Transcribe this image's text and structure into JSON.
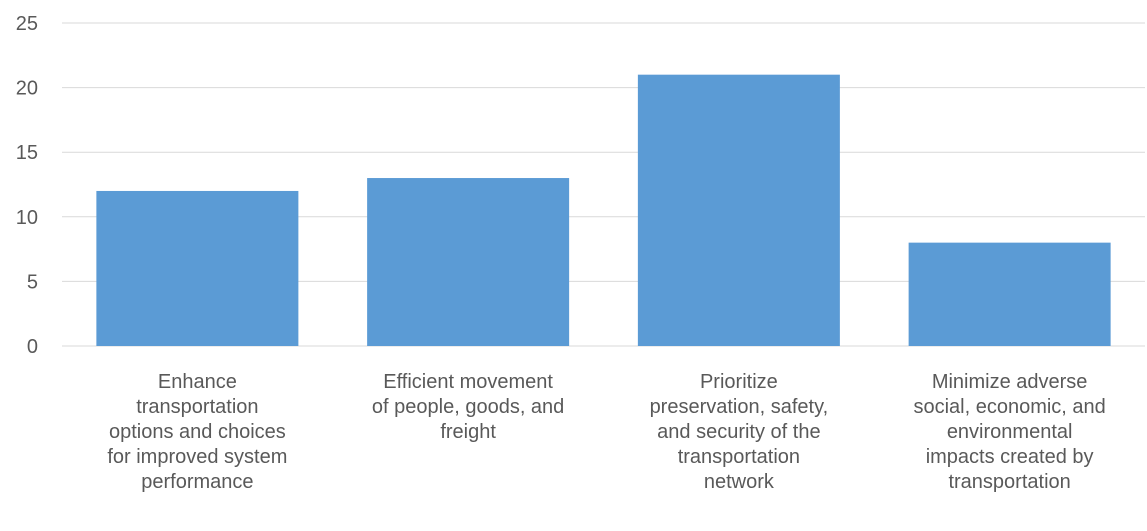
{
  "chart_data": {
    "type": "bar",
    "categories": [
      [
        "Enhance",
        "transportation",
        "options and choices",
        "for improved system",
        "performance"
      ],
      [
        "Efficient movement",
        "of people, goods, and",
        "freight"
      ],
      [
        "Prioritize",
        "preservation, safety,",
        "and security of the",
        "transportation",
        "network"
      ],
      [
        "Minimize adverse",
        "social, economic, and",
        "environmental",
        "impacts created by",
        "transportation"
      ]
    ],
    "values": [
      12,
      13,
      21,
      8
    ],
    "ylim": [
      0,
      25
    ],
    "yticks": [
      0,
      5,
      10,
      15,
      20,
      25
    ],
    "title": "",
    "xlabel": "",
    "ylabel": "",
    "grid": true,
    "legend": "none",
    "colors": {
      "bar": "#5B9BD5",
      "grid": "#D9D9D9",
      "text": "#595959"
    }
  }
}
